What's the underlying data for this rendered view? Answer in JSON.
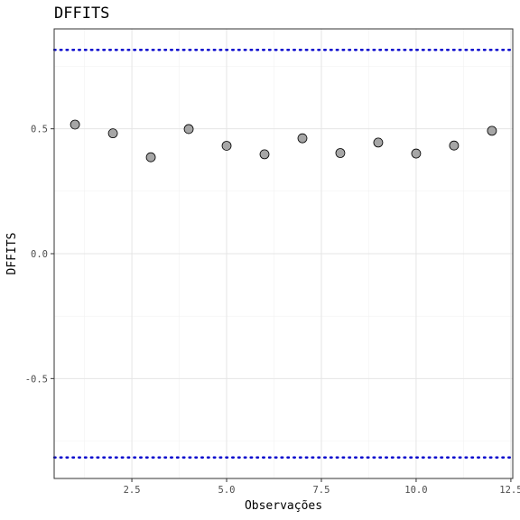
{
  "chart_data": {
    "type": "scatter",
    "title": "DFFITS",
    "xlabel": "Observações",
    "ylabel": "DFFITS",
    "xlim": [
      0.45,
      12.55
    ],
    "ylim": [
      -0.9,
      0.9
    ],
    "x_ticks": [
      2.5,
      5.0,
      7.5,
      10.0,
      12.5
    ],
    "x_tick_labels": [
      "2.5",
      "5.0",
      "7.5",
      "10.0",
      "12.5"
    ],
    "y_ticks": [
      -0.5,
      0.0,
      0.5
    ],
    "y_tick_labels": [
      "-0.5",
      "0.0",
      "0.5"
    ],
    "grid": true,
    "reference_lines": [
      0.816,
      -0.816
    ],
    "x": [
      1,
      2,
      3,
      4,
      5,
      6,
      7,
      8,
      9,
      10,
      11,
      12
    ],
    "y": [
      0.517,
      0.482,
      0.386,
      0.499,
      0.432,
      0.398,
      0.462,
      0.403,
      0.445,
      0.401,
      0.433,
      0.492
    ],
    "colors": {
      "point_fill": "#a6a6a6",
      "point_stroke": "#000000",
      "reference_line": "#0000cc",
      "panel_border": "#333333",
      "grid_major": "#e5e5e5",
      "grid_minor": "#f2f2f2"
    }
  }
}
